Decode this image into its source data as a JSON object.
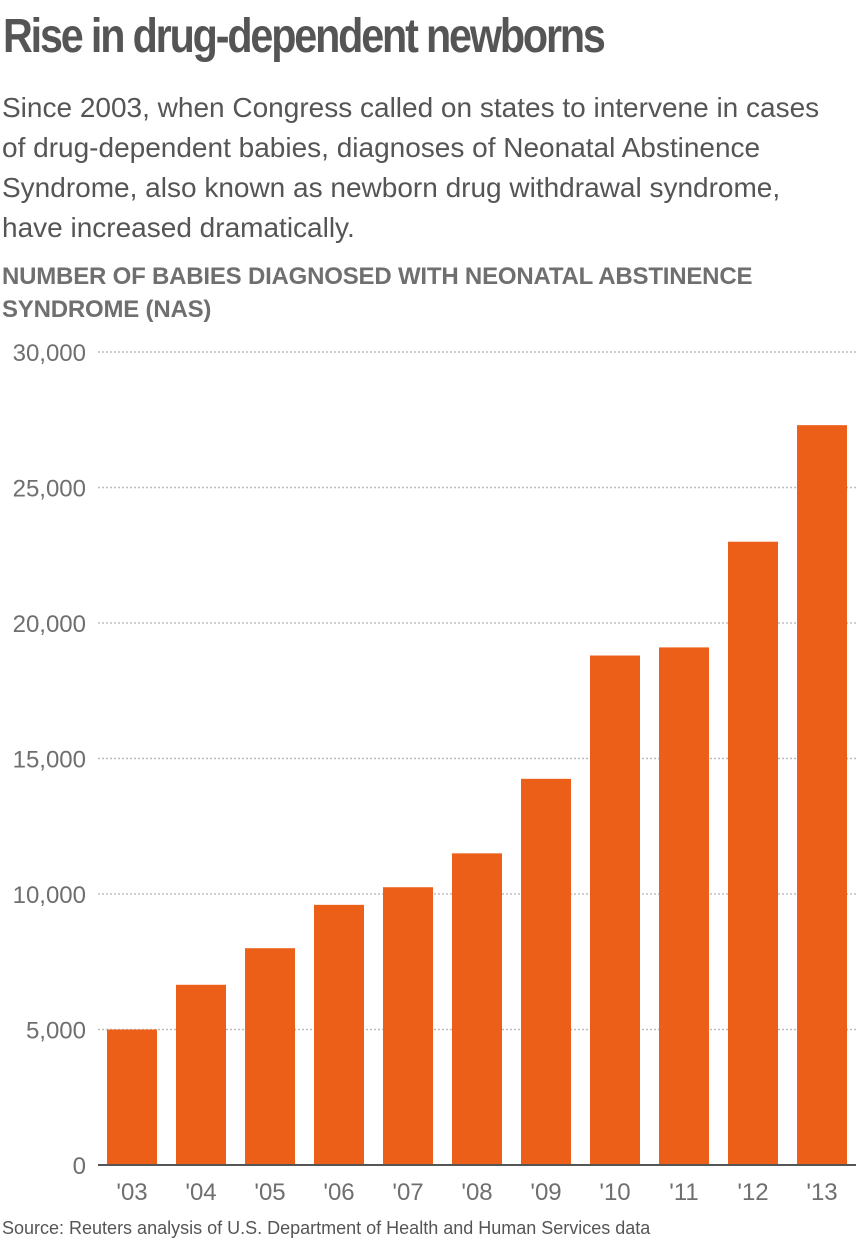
{
  "header": {
    "title": "Rise in drug-dependent newborns",
    "subtitle": "Since 2003, when Congress called on states to intervene in cases of drug-dependent babies, diagnoses of Neonatal Abstinence Syndrome, also known as newborn drug withdrawal syndrome, have increased dramatically.",
    "axis_heading": "NUMBER OF BABIES DIAGNOSED WITH NEONATAL ABSTINENCE SYNDROME (NAS)"
  },
  "footer": {
    "source": "Source: Reuters analysis of U.S. Department of Health and Human Services data"
  },
  "colors": {
    "bar": "#ec5f19",
    "text": "#555555",
    "grid": "#bdbdbd"
  },
  "chart_data": {
    "type": "bar",
    "categories": [
      "'03",
      "'04",
      "'05",
      "'06",
      "'07",
      "'08",
      "'09",
      "'10",
      "'11",
      "'12",
      "'13"
    ],
    "values": [
      5000,
      6650,
      8000,
      9600,
      10250,
      11500,
      14250,
      18800,
      19100,
      23000,
      27300
    ],
    "yticks": [
      0,
      5000,
      10000,
      15000,
      20000,
      25000,
      30000
    ],
    "ytick_labels": [
      "0",
      "5,000",
      "10,000",
      "15,000",
      "20,000",
      "25,000",
      "30,000"
    ],
    "ylim": [
      0,
      30000
    ],
    "grid": true,
    "legend": "none"
  }
}
